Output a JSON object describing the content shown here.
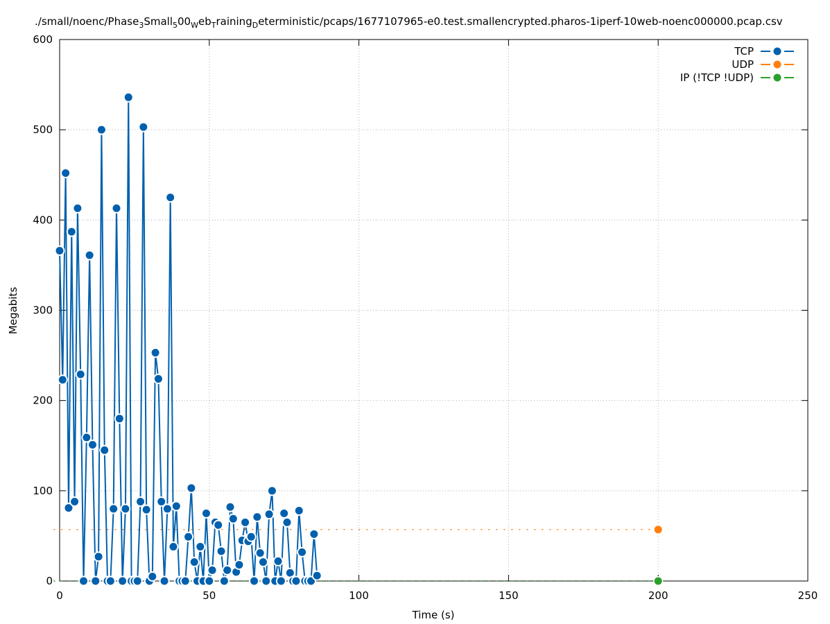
{
  "chart_data": {
    "type": "line",
    "title_parts": [
      {
        "text": "./small/noenc/Phase",
        "sub": false
      },
      {
        "text": "3",
        "sub": true
      },
      {
        "text": "S",
        "sub": false
      },
      {
        "text": "mall",
        "sub": false
      },
      {
        "text": "5",
        "sub": true
      },
      {
        "text": "00",
        "sub": false
      },
      {
        "text": "W",
        "sub": true
      },
      {
        "text": "eb",
        "sub": false
      },
      {
        "text": "T",
        "sub": true
      },
      {
        "text": "raining",
        "sub": false
      },
      {
        "text": "D",
        "sub": true
      },
      {
        "text": "eterministic/pcaps/1677107965-e0.test.smallencrypted.pharos-1iperf-10web-noenc000000.pcap.csv",
        "sub": false
      }
    ],
    "xlabel": "Time (s)",
    "ylabel": "Megabits",
    "xlim": [
      0,
      250
    ],
    "ylim": [
      0,
      600
    ],
    "xticks": [
      0,
      50,
      100,
      150,
      200,
      250
    ],
    "yticks": [
      0,
      100,
      200,
      300,
      400,
      500,
      600
    ],
    "grid": true,
    "legend_position": "top-right",
    "series": [
      {
        "name": "TCP",
        "color": "#0060ad",
        "style": "solid",
        "x": [
          0,
          1,
          2,
          3,
          4,
          5,
          6,
          7,
          8,
          9,
          10,
          11,
          12,
          13,
          14,
          15,
          16,
          17,
          18,
          19,
          20,
          21,
          22,
          23,
          24,
          25,
          26,
          27,
          28,
          29,
          30,
          31,
          32,
          33,
          34,
          35,
          36,
          37,
          38,
          39,
          40,
          41,
          42,
          43,
          44,
          45,
          46,
          47,
          48,
          49,
          50,
          51,
          52,
          53,
          54,
          55,
          56,
          57,
          58,
          59,
          60,
          61,
          62,
          63,
          64,
          65,
          66,
          67,
          68,
          69,
          70,
          71,
          72,
          73,
          74,
          75,
          76,
          77,
          78,
          79,
          80,
          81,
          82,
          83,
          84,
          85,
          86
        ],
        "y": [
          366,
          223,
          452,
          81,
          387,
          88,
          413,
          229,
          0,
          159,
          361,
          151,
          0,
          27,
          500,
          145,
          0,
          0,
          80,
          413,
          180,
          0,
          80,
          536,
          0,
          0,
          0,
          88,
          503,
          79,
          0,
          5,
          253,
          224,
          88,
          0,
          80,
          425,
          38,
          83,
          0,
          0,
          0,
          49,
          103,
          21,
          0,
          38,
          0,
          75,
          0,
          12,
          65,
          62,
          33,
          0,
          12,
          82,
          69,
          10,
          18,
          45,
          65,
          44,
          49,
          0,
          71,
          31,
          21,
          0,
          74,
          100,
          0,
          22,
          0,
          75,
          65,
          9,
          0,
          0,
          78,
          32,
          0,
          0,
          0,
          52,
          6
        ]
      },
      {
        "name": "UDP",
        "color": "#ff7f0e",
        "style": "dashed",
        "x": [
          -2,
          200
        ],
        "y": [
          57,
          57
        ],
        "marker_x": [
          200
        ],
        "marker_y": [
          57
        ]
      },
      {
        "name": "IP (!TCP  !UDP)",
        "color": "#2ca02c",
        "style": "dashed",
        "x": [
          -2,
          200
        ],
        "y": [
          0,
          0
        ],
        "marker_x": [
          200
        ],
        "marker_y": [
          0
        ]
      }
    ]
  }
}
